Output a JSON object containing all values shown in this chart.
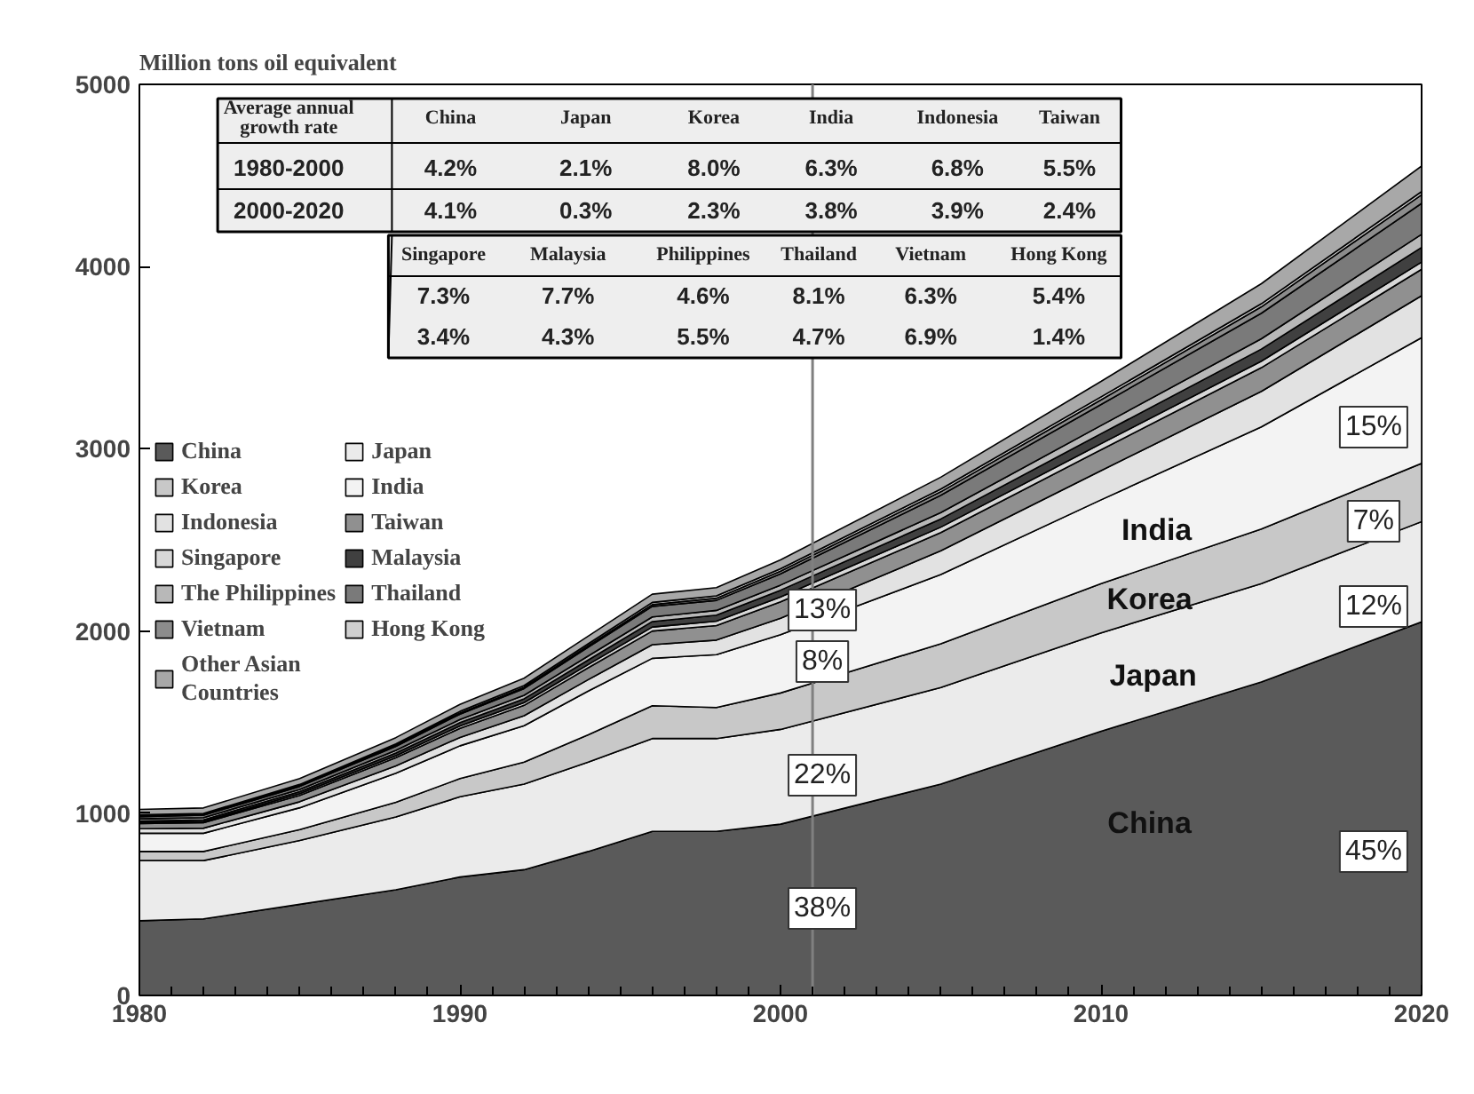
{
  "chart_data": {
    "type": "area",
    "stacked": true,
    "ylabel": "Million tons oil equivalent",
    "x": [
      1980,
      1982,
      1985,
      1988,
      1990,
      1992,
      1994,
      1996,
      1998,
      2000,
      2005,
      2010,
      2015,
      2020
    ],
    "xlim": [
      1980,
      2020
    ],
    "xticks": [
      1980,
      1990,
      2000,
      2010,
      2020
    ],
    "ylim": [
      0,
      5000
    ],
    "yticks": [
      0,
      1000,
      2000,
      3000,
      4000,
      5000
    ],
    "grid": false,
    "legend": "left",
    "ref_lines": [
      {
        "axis": "x",
        "value": 2001,
        "label": null,
        "color": "#808080"
      }
    ],
    "series": [
      {
        "name": "China",
        "color": "#5a5a5a",
        "values": [
          410,
          420,
          500,
          580,
          650,
          690,
          790,
          900,
          900,
          940,
          1160,
          1450,
          1720,
          2050
        ]
      },
      {
        "name": "Japan",
        "color": "#ebebeb",
        "values": [
          330,
          320,
          350,
          400,
          440,
          470,
          490,
          510,
          510,
          520,
          530,
          540,
          540,
          550
        ]
      },
      {
        "name": "Korea",
        "color": "#c8c8c8",
        "values": [
          50,
          50,
          60,
          80,
          100,
          120,
          150,
          180,
          170,
          200,
          240,
          270,
          300,
          320
        ]
      },
      {
        "name": "India",
        "color": "#f3f3f3",
        "values": [
          100,
          100,
          120,
          160,
          180,
          200,
          240,
          260,
          290,
          320,
          380,
          460,
          560,
          690
        ]
      },
      {
        "name": "Indonesia",
        "color": "#e2e2e2",
        "values": [
          25,
          28,
          33,
          40,
          46,
          55,
          63,
          75,
          80,
          90,
          130,
          160,
          195,
          230
        ]
      },
      {
        "name": "Taiwan",
        "color": "#909090",
        "values": [
          28,
          30,
          35,
          45,
          50,
          57,
          65,
          75,
          80,
          90,
          100,
          115,
          130,
          145
        ]
      },
      {
        "name": "Singapore",
        "color": "#d8d8d8",
        "values": [
          6,
          7,
          9,
          11,
          13,
          15,
          18,
          22,
          24,
          27,
          30,
          33,
          36,
          40
        ]
      },
      {
        "name": "Malaysia",
        "color": "#404040",
        "values": [
          8,
          9,
          11,
          14,
          18,
          21,
          25,
          30,
          33,
          37,
          45,
          55,
          66,
          80
        ]
      },
      {
        "name": "The Philippines",
        "color": "#b8b8b8",
        "values": [
          12,
          12,
          13,
          15,
          17,
          19,
          22,
          25,
          26,
          28,
          35,
          45,
          57,
          72
        ]
      },
      {
        "name": "Thailand",
        "color": "#7a7a7a",
        "values": [
          12,
          13,
          16,
          22,
          30,
          37,
          48,
          58,
          55,
          62,
          95,
          115,
          140,
          170
        ]
      },
      {
        "name": "Vietnam",
        "color": "#8c8c8c",
        "values": [
          4,
          4,
          4,
          5,
          6,
          7,
          8,
          10,
          12,
          14,
          19,
          26,
          35,
          47
        ]
      },
      {
        "name": "Hong Kong",
        "color": "#cfcfcf",
        "values": [
          6,
          6,
          7,
          8,
          9,
          10,
          11,
          12,
          13,
          14,
          15,
          16,
          17,
          18
        ]
      },
      {
        "name": "Other Asian\nCountries",
        "color": "#a8a8a8",
        "values": [
          30,
          30,
          32,
          35,
          38,
          40,
          42,
          45,
          45,
          48,
          65,
          85,
          110,
          140
        ]
      }
    ],
    "annotations": [
      "Average annual\ngrowth rate",
      "China",
      "Japan",
      "Korea",
      "India",
      "Indonesia",
      "Taiwan",
      "1980-2000",
      "4.2%",
      "2.1%",
      "8.0%",
      "6.3%",
      "6.8%",
      "5.5%",
      "2000-2020",
      "4.1%",
      "0.3%",
      "2.3%",
      "3.8%",
      "3.9%",
      "2.4%",
      "Singapore",
      "Malaysia",
      "Philippines",
      "Thailand",
      "Vietnam",
      "Hong Kong",
      "7.3%",
      "7.7%",
      "4.6%",
      "8.1%",
      "6.3%",
      "5.4%",
      "3.4%",
      "4.3%",
      "5.5%",
      "4.7%",
      "6.9%",
      "1.4%",
      "38%",
      "22%",
      "8%",
      "13%",
      "45%",
      "12%",
      "7%",
      "15%",
      "China",
      "Japan",
      "Korea",
      "India"
    ]
  }
}
